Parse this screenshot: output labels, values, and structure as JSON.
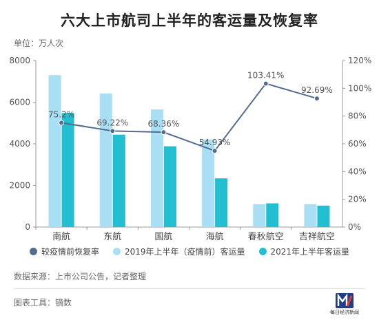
{
  "title": "六大上市航司上半年的客运量及恢复率",
  "unit_label": "单位：万人次",
  "chart_data": {
    "type": "bar",
    "categories": [
      "南航",
      "东航",
      "国航",
      "海航",
      "春秋航空",
      "吉祥航空"
    ],
    "series": [
      {
        "name": "2019年上半年（疫情前）客运量",
        "type": "bar",
        "axis": "left",
        "color": "#a8dff5",
        "values": [
          7300,
          6420,
          5650,
          4200,
          1100,
          1100
        ]
      },
      {
        "name": "2021年上半年客运量",
        "type": "bar",
        "axis": "left",
        "color": "#22bfd1",
        "values": [
          5480,
          4440,
          3880,
          2340,
          1140,
          1030
        ]
      },
      {
        "name": "较疫情前恢复率",
        "type": "line",
        "axis": "right",
        "color": "#536b8f",
        "values": [
          75.2,
          69.22,
          68.36,
          54.93,
          103.41,
          92.69
        ],
        "labels": [
          "75.2%",
          "69.22%",
          "68.36%",
          "54.93%",
          "103.41%",
          "92.69%"
        ]
      }
    ],
    "ylim_left": [
      0,
      8000
    ],
    "yticks_left": [
      "0",
      "2000",
      "4000",
      "6000",
      "8000"
    ],
    "ylim_right": [
      0,
      120
    ],
    "yticks_right": [
      "0%",
      "20%",
      "40%",
      "60%",
      "80%",
      "100%",
      "120%"
    ],
    "grid": false,
    "legend_position": "bottom",
    "legend_order": [
      "较疫情前恢复率",
      "2019年上半年（疫情前）客运量",
      "2021年上半年客运量"
    ]
  },
  "source": "数据来源：上市公司公告，记者整理",
  "tool": "图表工具：镝数",
  "brand": {
    "name": "每日经济新闻",
    "sub": "NATIONAL BUSINESS DAILY"
  }
}
